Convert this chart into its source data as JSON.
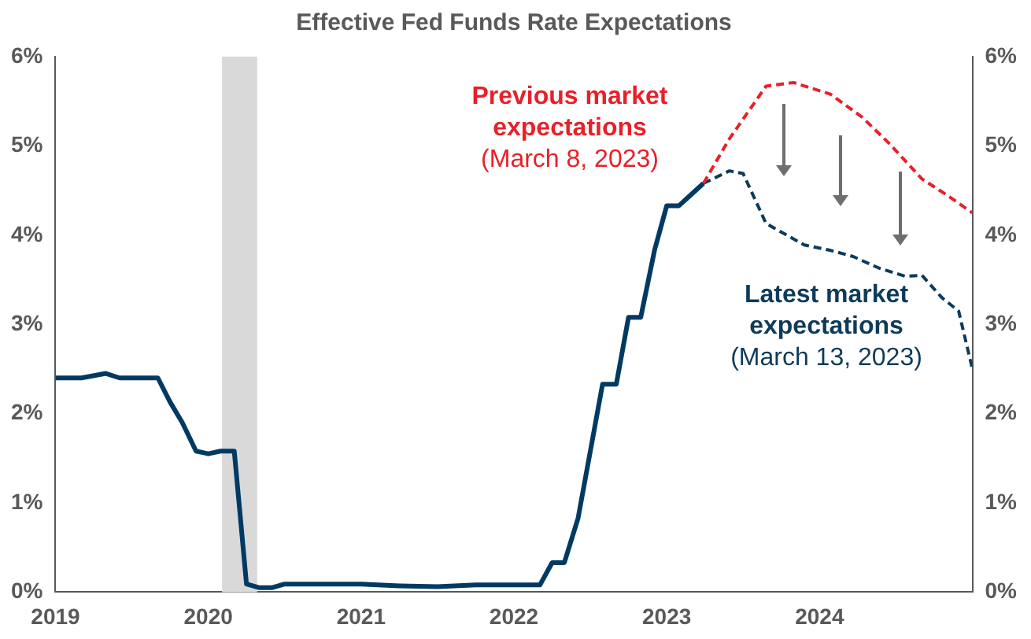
{
  "chart_data": {
    "type": "line",
    "title": "Effective Fed Funds Rate Expectations",
    "xlim": [
      2019,
      2025
    ],
    "xticks": [
      2019,
      2020,
      2021,
      2022,
      2023,
      2024
    ],
    "ylim": [
      0,
      6
    ],
    "yticks": [
      {
        "value": 0,
        "label": "0%"
      },
      {
        "value": 1,
        "label": "1%"
      },
      {
        "value": 2,
        "label": "2%"
      },
      {
        "value": 3,
        "label": "3%"
      },
      {
        "value": 4,
        "label": "4%"
      },
      {
        "value": 5,
        "label": "5%"
      },
      {
        "value": 6,
        "label": "6%"
      }
    ],
    "y2lim": [
      0,
      6
    ],
    "y2ticks": [
      {
        "value": 0,
        "label": "0%"
      },
      {
        "value": 1,
        "label": "1%"
      },
      {
        "value": 2,
        "label": "2%"
      },
      {
        "value": 3,
        "label": "3%"
      },
      {
        "value": 4,
        "label": "4%"
      },
      {
        "value": 5,
        "label": "5%"
      },
      {
        "value": 6,
        "label": "6%"
      }
    ],
    "bands": [
      {
        "axis": "x",
        "from": 2020.09,
        "to": 2020.32,
        "color": "#d9d9d9"
      }
    ],
    "series": [
      {
        "color": "#003a63",
        "line_style": "solid",
        "x": [
          2019.0,
          2019.17,
          2019.33,
          2019.42,
          2019.67,
          2019.75,
          2019.83,
          2019.92,
          2020.0,
          2020.08,
          2020.17,
          2020.25,
          2020.33,
          2020.42,
          2020.5,
          2020.75,
          2021.0,
          2021.25,
          2021.5,
          2021.75,
          2022.0,
          2022.17,
          2022.25,
          2022.33,
          2022.42,
          2022.5,
          2022.58,
          2022.67,
          2022.75,
          2022.83,
          2022.92,
          2023.0,
          2023.08,
          2023.24
        ],
        "values": [
          2.4,
          2.4,
          2.45,
          2.4,
          2.4,
          2.13,
          1.9,
          1.58,
          1.55,
          1.58,
          1.58,
          0.09,
          0.05,
          0.05,
          0.09,
          0.09,
          0.09,
          0.07,
          0.06,
          0.08,
          0.08,
          0.08,
          0.33,
          0.33,
          0.83,
          1.58,
          2.33,
          2.33,
          3.08,
          3.08,
          3.83,
          4.33,
          4.33,
          4.58
        ]
      },
      {
        "name": "Previous market expectations (March 8, 2023)",
        "color": "#e8202a",
        "line_style": "dashed",
        "x": [
          2023.24,
          2023.41,
          2023.65,
          2023.83,
          2024.07,
          2024.28,
          2024.46,
          2024.67,
          2024.85,
          2025.0
        ],
        "values": [
          4.58,
          5.08,
          5.67,
          5.71,
          5.58,
          5.32,
          5.02,
          4.63,
          4.43,
          4.25
        ]
      },
      {
        "name": "Latest market expectations (March 13, 2023)",
        "color": "#0d3b5a",
        "line_style": "dashed",
        "x": [
          2023.24,
          2023.41,
          2023.5,
          2023.65,
          2023.9,
          2024.07,
          2024.22,
          2024.39,
          2024.56,
          2024.67,
          2024.8,
          2024.91,
          2025.0
        ],
        "values": [
          4.58,
          4.72,
          4.69,
          4.13,
          3.89,
          3.83,
          3.76,
          3.63,
          3.54,
          3.55,
          3.3,
          3.15,
          2.5
        ]
      }
    ]
  }
}
